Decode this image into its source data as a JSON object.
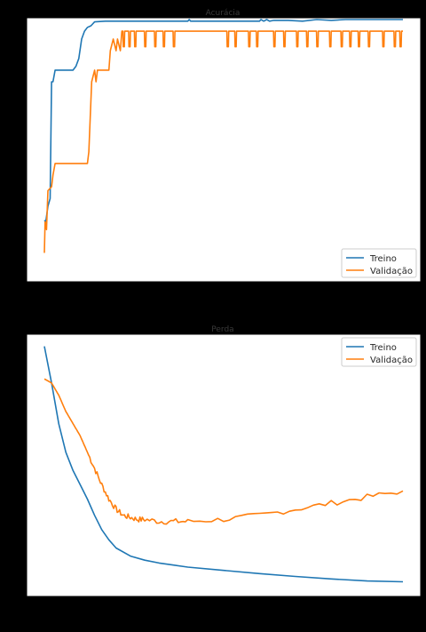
{
  "chart_data": [
    {
      "type": "line",
      "title": "Acurácia",
      "xlabel": "",
      "ylabel": "",
      "xlim": [
        0,
        500
      ],
      "ylim": [
        0.68,
        1.0
      ],
      "x_ticks": [
        "0",
        "100",
        "200",
        "300",
        "400",
        "500"
      ],
      "y_ticks": [],
      "grid": false,
      "legend_position": "bottom-right",
      "series": [
        {
          "name": "Treino",
          "color": "#1f77b4",
          "points": [
            [
              0,
              0.742
            ],
            [
              2,
              0.74
            ],
            [
              5,
              0.76
            ],
            [
              8,
              0.77
            ],
            [
              10,
              0.92
            ],
            [
              12,
              0.92
            ],
            [
              15,
              0.935
            ],
            [
              40,
              0.935
            ],
            [
              44,
              0.94
            ],
            [
              48,
              0.95
            ],
            [
              52,
              0.975
            ],
            [
              56,
              0.985
            ],
            [
              60,
              0.99
            ],
            [
              65,
              0.992
            ],
            [
              70,
              0.997
            ],
            [
              85,
              0.998
            ],
            [
              200,
              0.998
            ],
            [
              202,
              1.0
            ],
            [
              204,
              0.998
            ],
            [
              300,
              0.998
            ],
            [
              302,
              1.0
            ],
            [
              306,
              0.998
            ],
            [
              310,
              1.0
            ],
            [
              314,
              0.998
            ],
            [
              320,
              0.999
            ],
            [
              340,
              0.999
            ],
            [
              360,
              0.998
            ],
            [
              380,
              1.0
            ],
            [
              400,
              0.999
            ],
            [
              420,
              1.0
            ],
            [
              440,
              1.0
            ],
            [
              500,
              1.0
            ]
          ]
        },
        {
          "name": "Validação",
          "color": "#ff7f0e",
          "points": [
            [
              0,
              0.7
            ],
            [
              1,
              0.74
            ],
            [
              3,
              0.73
            ],
            [
              5,
              0.78
            ],
            [
              10,
              0.785
            ],
            [
              12,
              0.8
            ],
            [
              15,
              0.815
            ],
            [
              60,
              0.815
            ],
            [
              62,
              0.83
            ],
            [
              66,
              0.92
            ],
            [
              70,
              0.935
            ],
            [
              72,
              0.92
            ],
            [
              74,
              0.935
            ],
            [
              90,
              0.935
            ],
            [
              92,
              0.96
            ],
            [
              96,
              0.975
            ],
            [
              100,
              0.96
            ],
            [
              102,
              0.975
            ],
            [
              106,
              0.96
            ],
            [
              108,
              0.985
            ],
            [
              500,
              0.985
            ]
          ],
          "dips": [
            110,
            118,
            126,
            140,
            154,
            166,
            180,
            255,
            266,
            285,
            296,
            320,
            334,
            352,
            366,
            380,
            398,
            414,
            426,
            438,
            452,
            472,
            488,
            496
          ],
          "dip_value": 0.965
        }
      ]
    },
    {
      "type": "line",
      "title": "Perda",
      "xlabel": "",
      "ylabel": "",
      "xlim": [
        0,
        500
      ],
      "ylim": [
        0.0,
        0.6
      ],
      "x_ticks": [],
      "y_ticks": [],
      "grid": false,
      "legend_position": "top-right",
      "series": [
        {
          "name": "Treino",
          "color": "#1f77b4",
          "points": [
            [
              0,
              0.59
            ],
            [
              10,
              0.5
            ],
            [
              20,
              0.4
            ],
            [
              30,
              0.33
            ],
            [
              40,
              0.285
            ],
            [
              50,
              0.25
            ],
            [
              60,
              0.215
            ],
            [
              70,
              0.175
            ],
            [
              80,
              0.14
            ],
            [
              90,
              0.115
            ],
            [
              100,
              0.095
            ],
            [
              120,
              0.075
            ],
            [
              140,
              0.065
            ],
            [
              160,
              0.058
            ],
            [
              180,
              0.053
            ],
            [
              200,
              0.048
            ],
            [
              250,
              0.04
            ],
            [
              300,
              0.032
            ],
            [
              350,
              0.025
            ],
            [
              400,
              0.019
            ],
            [
              450,
              0.014
            ],
            [
              500,
              0.012
            ]
          ]
        },
        {
          "name": "Validação",
          "color": "#ff7f0e",
          "points": [
            [
              0,
              0.51
            ],
            [
              10,
              0.5
            ],
            [
              20,
              0.47
            ],
            [
              30,
              0.43
            ],
            [
              40,
              0.4
            ],
            [
              50,
              0.37
            ],
            [
              60,
              0.33
            ],
            [
              70,
              0.29
            ],
            [
              80,
              0.25
            ],
            [
              90,
              0.215
            ],
            [
              100,
              0.19
            ],
            [
              110,
              0.175
            ],
            [
              120,
              0.17
            ],
            [
              130,
              0.165
            ],
            [
              140,
              0.165
            ],
            [
              160,
              0.16
            ],
            [
              180,
              0.16
            ],
            [
              200,
              0.16
            ],
            [
              250,
              0.165
            ],
            [
              300,
              0.175
            ],
            [
              350,
              0.19
            ],
            [
              400,
              0.205
            ],
            [
              450,
              0.22
            ],
            [
              500,
              0.235
            ]
          ],
          "noise": 0.007
        }
      ]
    }
  ]
}
